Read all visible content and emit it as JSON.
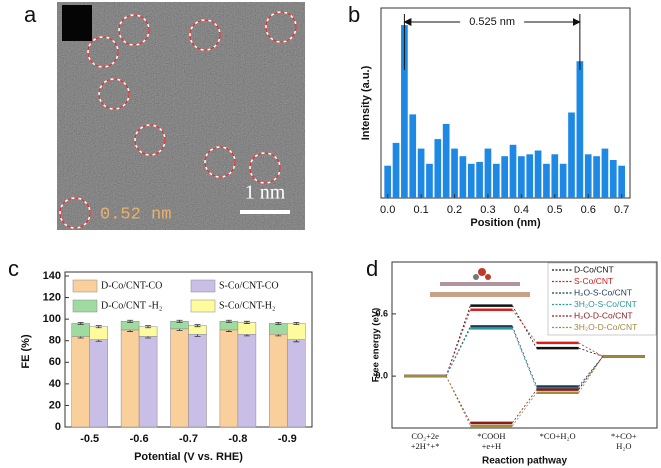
{
  "image_a": {
    "label": "a",
    "annotation": "0.52 nm",
    "scale_bar": "1 nm"
  },
  "chart_data": [
    {
      "type": "bar",
      "panel_label": "b",
      "xlabel": "Position (nm)",
      "ylabel": "Intensity (a.u.)",
      "color": "#1e88e5",
      "x": [
        0,
        0.025,
        0.05,
        0.075,
        0.1,
        0.125,
        0.15,
        0.175,
        0.2,
        0.225,
        0.25,
        0.275,
        0.3,
        0.325,
        0.35,
        0.375,
        0.4,
        0.425,
        0.45,
        0.475,
        0.5,
        0.525,
        0.55,
        0.575,
        0.6,
        0.625,
        0.65,
        0.675,
        0.7
      ],
      "values": [
        17,
        29,
        91,
        44,
        26,
        18,
        31,
        39,
        26,
        22,
        18,
        19,
        26,
        18,
        22,
        28,
        22,
        23,
        25,
        18,
        23,
        18,
        45,
        72,
        23,
        22,
        26,
        20,
        17
      ],
      "xlim": [
        -0.02,
        0.725
      ],
      "ylim": [
        0,
        100
      ],
      "xticks": [
        {
          "value": 0,
          "label": "0.0"
        },
        0.1,
        0.2,
        0.3,
        0.4,
        0.5,
        0.6,
        0.7
      ],
      "annotation": {
        "text": "0.525 nm",
        "x": [
          0.05,
          0.575
        ]
      }
    },
    {
      "type": "stacked_bar",
      "panel_label": "c",
      "xlabel": "Potential (V vs. RHE)",
      "ylabel": "FE (%)",
      "categories": [
        "-0.5",
        "-0.6",
        "-0.7",
        "-0.8",
        "-0.9"
      ],
      "stacks": [
        {
          "series": [
            {
              "name": "D-Co/CNT-CO",
              "color": "#f9cf9b",
              "values": [
                84,
                90,
                91,
                90,
                86
              ],
              "errors": [
                1.5,
                1.5,
                1.5,
                1.5,
                1.5
              ]
            },
            {
              "name": "D-Co/CNT -H₂",
              "color": "#9fdaa0",
              "values": [
                12,
                8,
                7,
                8,
                10
              ],
              "errors": [
                1,
                1,
                1,
                1,
                1
              ]
            }
          ]
        },
        {
          "series": [
            {
              "name": "S-Co/CNT-CO",
              "color": "#c9bfe6",
              "values": [
                81,
                84,
                86,
                86,
                81
              ],
              "errors": [
                1.5,
                1.5,
                2,
                1.5,
                2
              ]
            },
            {
              "name": "S-Co/CNT-H₂",
              "color": "#fdfb9c",
              "values": [
                12,
                9,
                8,
                11,
                15
              ],
              "errors": [
                1,
                1,
                1,
                1,
                1
              ]
            }
          ]
        }
      ],
      "ylim": [
        0,
        140
      ],
      "yticks": [
        0,
        20,
        40,
        60,
        80,
        100,
        120,
        140
      ]
    },
    {
      "type": "energy_levels",
      "panel_label": "d",
      "xlabel": "Reaction pathway",
      "ylabel": "Free energy  (eV)",
      "categories": [
        [
          "CO₂+2e",
          "+2H⁺+*"
        ],
        [
          "*COOH",
          "+e+H"
        ],
        [
          "*CO+H₂O"
        ],
        [
          "*+CO+",
          "H₂O"
        ]
      ],
      "series": [
        {
          "name": "D-Co/CNT",
          "color": "#111111",
          "values": [
            0,
            0.68,
            0.27,
            0.19
          ]
        },
        {
          "name": "S-Co/CNT",
          "color": "#d62020",
          "values": [
            0,
            0.64,
            0.32,
            0.19
          ]
        },
        {
          "name": "H₂O-S-Co/CNT",
          "color": "#1f3b5a",
          "values": [
            0,
            0.48,
            -0.1,
            0.19
          ]
        },
        {
          "name": "3H₂O-S-Co/CNT",
          "color": "#2a9a9a",
          "values": [
            0,
            0.46,
            -0.12,
            0.19
          ]
        },
        {
          "name": "H₂O-D-Co/CNT",
          "color": "#8b1a1a",
          "values": [
            0,
            -0.45,
            -0.13,
            0.19
          ]
        },
        {
          "name": "3H₂O-D-Co/CNT",
          "color": "#a08a3c",
          "values": [
            0,
            -0.48,
            -0.16,
            0.19
          ]
        }
      ],
      "ylim": [
        -0.5,
        1.1
      ],
      "yticks": [
        {
          "value": 0,
          "label": "0.0"
        },
        0.6
      ]
    }
  ]
}
